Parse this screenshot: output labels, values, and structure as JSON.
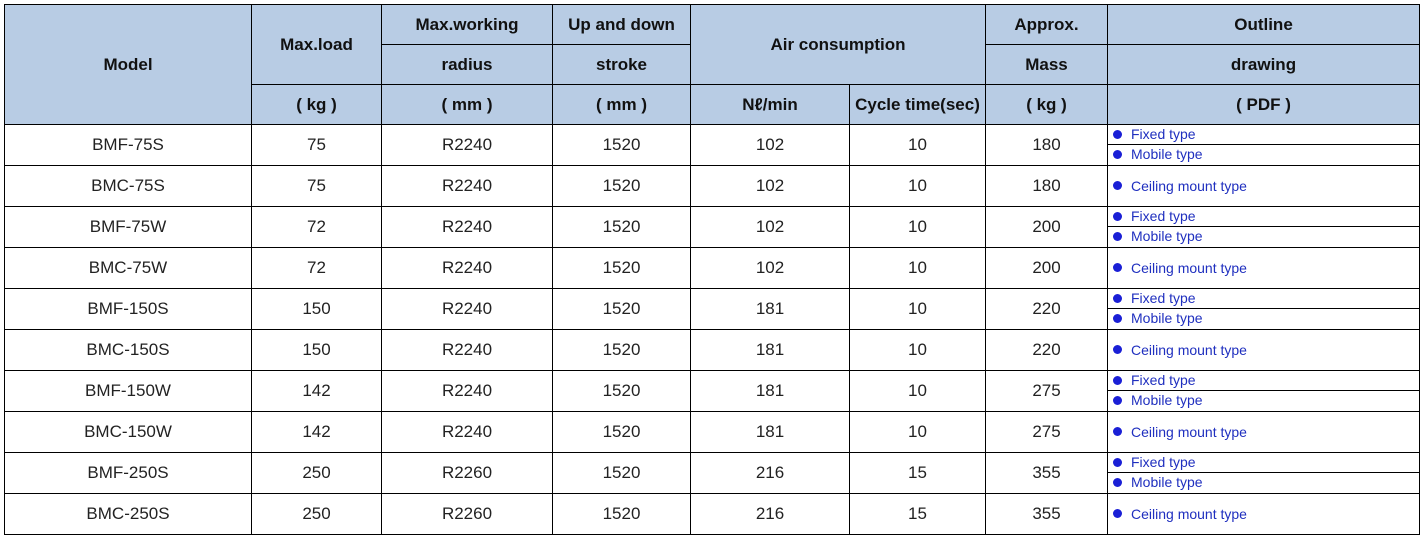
{
  "header": {
    "model": "Model",
    "max_load": "Max.load",
    "max_load_unit": "( kg )",
    "radius_line1": "Max.working",
    "radius_line2": "radius",
    "radius_unit": "( mm )",
    "stroke_line1": "Up and down",
    "stroke_line2": "stroke",
    "stroke_unit": "( mm )",
    "air": "Air consumption",
    "air_unit": "Nℓ/min",
    "cycle": "Cycle time(sec)",
    "mass_line1": "Approx.",
    "mass_line2": "Mass",
    "mass_unit": "( kg )",
    "outline_line1": "Outline",
    "outline_line2": "drawing",
    "outline_unit": "( PDF )"
  },
  "rows": [
    {
      "model": "BMF-75S",
      "load": "75",
      "radius": "R2240",
      "stroke": "1520",
      "air": "102",
      "cycle": "10",
      "mass": "180",
      "links": [
        "Fixed type",
        "Mobile type"
      ]
    },
    {
      "model": "BMC-75S",
      "load": "75",
      "radius": "R2240",
      "stroke": "1520",
      "air": "102",
      "cycle": "10",
      "mass": "180",
      "links": [
        "Ceiling mount type"
      ]
    },
    {
      "model": "BMF-75W",
      "load": "72",
      "radius": "R2240",
      "stroke": "1520",
      "air": "102",
      "cycle": "10",
      "mass": "200",
      "links": [
        "Fixed type",
        "Mobile type"
      ]
    },
    {
      "model": "BMC-75W",
      "load": "72",
      "radius": "R2240",
      "stroke": "1520",
      "air": "102",
      "cycle": "10",
      "mass": "200",
      "links": [
        "Ceiling mount type"
      ]
    },
    {
      "model": "BMF-150S",
      "load": "150",
      "radius": "R2240",
      "stroke": "1520",
      "air": "181",
      "cycle": "10",
      "mass": "220",
      "links": [
        "Fixed type",
        "Mobile type"
      ]
    },
    {
      "model": "BMC-150S",
      "load": "150",
      "radius": "R2240",
      "stroke": "1520",
      "air": "181",
      "cycle": "10",
      "mass": "220",
      "links": [
        "Ceiling mount type"
      ]
    },
    {
      "model": "BMF-150W",
      "load": "142",
      "radius": "R2240",
      "stroke": "1520",
      "air": "181",
      "cycle": "10",
      "mass": "275",
      "links": [
        "Fixed type",
        "Mobile type"
      ]
    },
    {
      "model": "BMC-150W",
      "load": "142",
      "radius": "R2240",
      "stroke": "1520",
      "air": "181",
      "cycle": "10",
      "mass": "275",
      "links": [
        "Ceiling mount type"
      ]
    },
    {
      "model": "BMF-250S",
      "load": "250",
      "radius": "R2260",
      "stroke": "1520",
      "air": "216",
      "cycle": "15",
      "mass": "355",
      "links": [
        "Fixed type",
        "Mobile type"
      ]
    },
    {
      "model": "BMC-250S",
      "load": "250",
      "radius": "R2260",
      "stroke": "1520",
      "air": "216",
      "cycle": "15",
      "mass": "355",
      "links": [
        "Ceiling mount type"
      ]
    }
  ],
  "colors": {
    "header_bg": "#b8cce4",
    "link": "#1f2fbf",
    "bullet": "#1a1fd6"
  }
}
